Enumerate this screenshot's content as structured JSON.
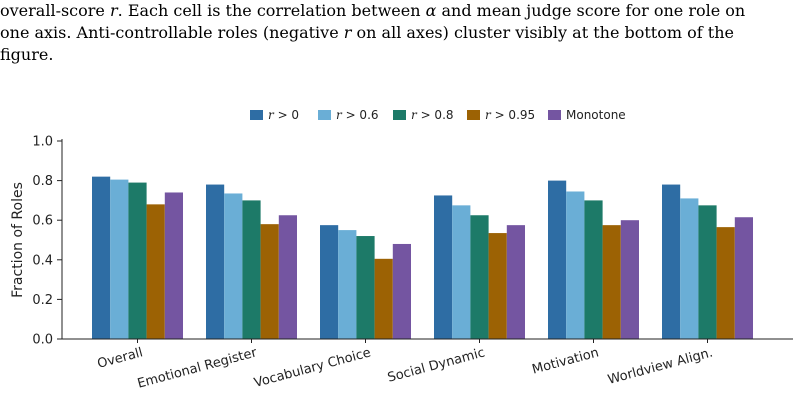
{
  "caption": {
    "line1_a": "overall-score ",
    "line1_r": "r",
    "line1_b": ". Each cell is the correlation between ",
    "line1_alpha": "α",
    "line1_c": " and mean judge score for one role on",
    "line2_a": "one axis. Anti-controllable roles (negative ",
    "line2_r": "r",
    "line2_b": " on all axes) cluster visibly at the bottom of the",
    "line3": "figure."
  },
  "colors": {
    "r_gt_0": "#2e6da4",
    "r_gt_06": "#6aaed6",
    "r_gt_08": "#1d7a68",
    "r_gt_095": "#9c6204",
    "monotone": "#7455a1"
  },
  "chart_data": {
    "type": "bar",
    "categories": [
      "Overall",
      "Emotional Register",
      "Vocabulary Choice",
      "Social Dynamic",
      "Motivation",
      "Worldview Align."
    ],
    "series": [
      {
        "name": "r > 0",
        "legend_sym": "r",
        "legend_rest": " > 0",
        "color_key": "r_gt_0",
        "values": [
          0.82,
          0.78,
          0.575,
          0.725,
          0.8,
          0.78
        ]
      },
      {
        "name": "r > 0.6",
        "legend_sym": "r",
        "legend_rest": " > 0.6",
        "color_key": "r_gt_06",
        "values": [
          0.805,
          0.735,
          0.55,
          0.675,
          0.745,
          0.71
        ]
      },
      {
        "name": "r > 0.8",
        "legend_sym": "r",
        "legend_rest": " > 0.8",
        "color_key": "r_gt_08",
        "values": [
          0.79,
          0.7,
          0.52,
          0.625,
          0.7,
          0.675
        ]
      },
      {
        "name": "r > 0.95",
        "legend_sym": "r",
        "legend_rest": " > 0.95",
        "color_key": "r_gt_095",
        "values": [
          0.68,
          0.58,
          0.405,
          0.535,
          0.575,
          0.565
        ]
      },
      {
        "name": "Monotone",
        "legend_sym": "",
        "legend_rest": "Monotone",
        "color_key": "monotone",
        "values": [
          0.74,
          0.625,
          0.48,
          0.575,
          0.6,
          0.615
        ]
      }
    ],
    "ylabel": "Fraction of Roles",
    "xlabel": "",
    "ylim": [
      0,
      1.0
    ],
    "yticks": [
      "0.0",
      "0.2",
      "0.4",
      "0.6",
      "0.8",
      "1.0"
    ],
    "ytick_values": [
      0,
      0.2,
      0.4,
      0.6,
      0.8,
      1.0
    ],
    "grid": false,
    "legend_position": "top-center"
  }
}
